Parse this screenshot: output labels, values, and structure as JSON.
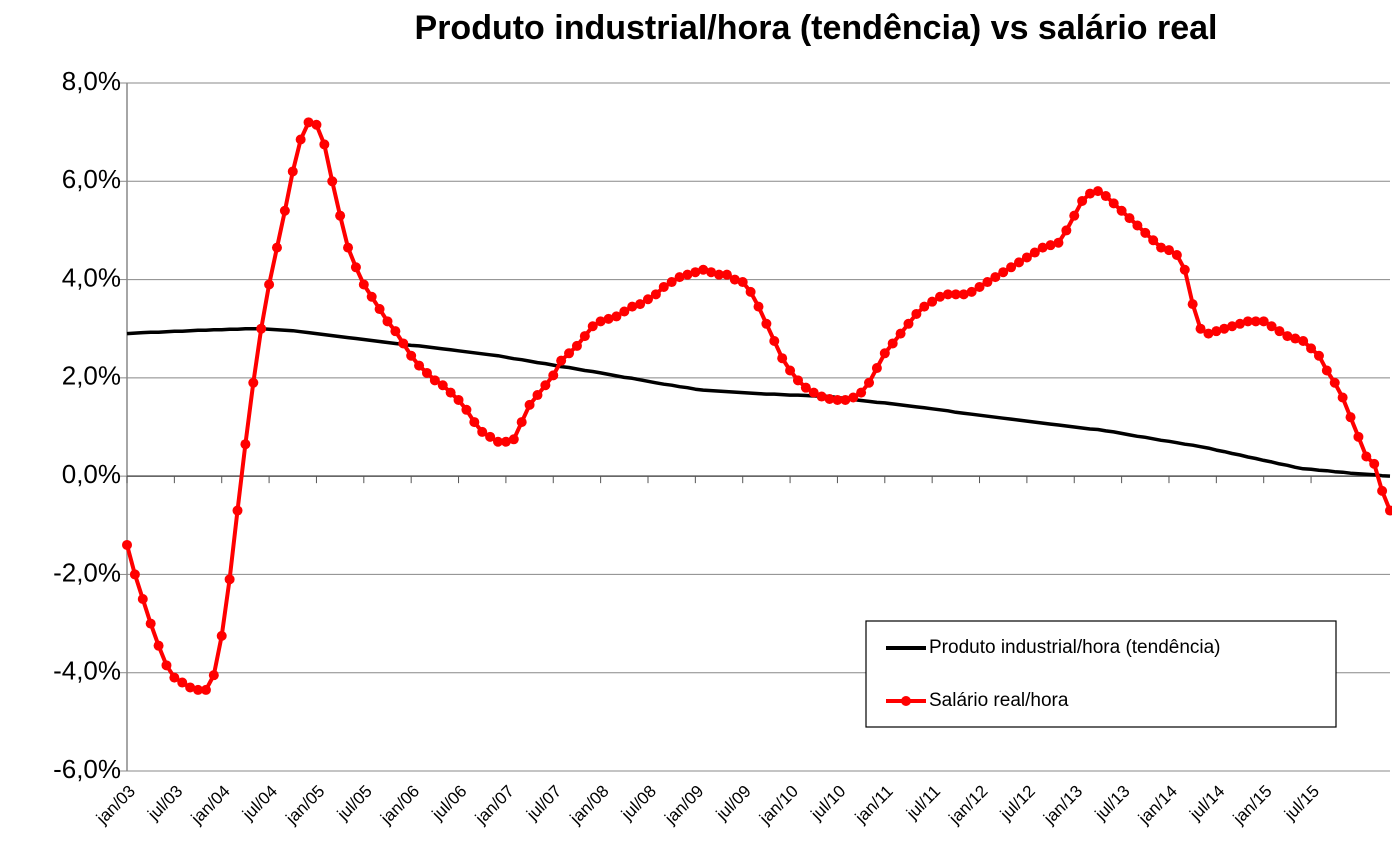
{
  "chart_data": {
    "type": "line",
    "title": "Produto industrial/hora (tendência) vs salário real",
    "categories": [
      "jan/03",
      null,
      null,
      null,
      null,
      null,
      "jul/03",
      null,
      null,
      null,
      null,
      null,
      "jan/04",
      null,
      null,
      null,
      null,
      null,
      "jul/04",
      null,
      null,
      null,
      null,
      null,
      "jan/05",
      null,
      null,
      null,
      null,
      null,
      "jul/05",
      null,
      null,
      null,
      null,
      null,
      "jan/06",
      null,
      null,
      null,
      null,
      null,
      "jul/06",
      null,
      null,
      null,
      null,
      null,
      "jan/07",
      null,
      null,
      null,
      null,
      null,
      "jul/07",
      null,
      null,
      null,
      null,
      null,
      "jan/08",
      null,
      null,
      null,
      null,
      null,
      "jul/08",
      null,
      null,
      null,
      null,
      null,
      "jan/09",
      null,
      null,
      null,
      null,
      null,
      "jul/09",
      null,
      null,
      null,
      null,
      null,
      "jan/10",
      null,
      null,
      null,
      null,
      null,
      "jul/10",
      null,
      null,
      null,
      null,
      null,
      "jan/11",
      null,
      null,
      null,
      null,
      null,
      "jul/11",
      null,
      null,
      null,
      null,
      null,
      "jan/12",
      null,
      null,
      null,
      null,
      null,
      "jul/12",
      null,
      null,
      null,
      null,
      null,
      "jan/13",
      null,
      null,
      null,
      null,
      null,
      "jul/13",
      null,
      null,
      null,
      null,
      null,
      "jan/14",
      null,
      null,
      null,
      null,
      null,
      "jul/14",
      null,
      null,
      null,
      null,
      null,
      "jan/15",
      null,
      null,
      null,
      null,
      null,
      "jul/15",
      null,
      null,
      null,
      null,
      null,
      null,
      null,
      null,
      null,
      null
    ],
    "series": [
      {
        "name": "Produto industrial/hora (tendência)",
        "color": "#000000",
        "marker": false,
        "values": [
          2.9,
          2.91,
          2.92,
          2.93,
          2.93,
          2.94,
          2.95,
          2.95,
          2.96,
          2.97,
          2.97,
          2.98,
          2.98,
          2.99,
          2.99,
          3.0,
          3.0,
          3.0,
          2.99,
          2.98,
          2.97,
          2.96,
          2.94,
          2.92,
          2.9,
          2.88,
          2.86,
          2.84,
          2.82,
          2.8,
          2.78,
          2.76,
          2.74,
          2.72,
          2.7,
          2.68,
          2.66,
          2.65,
          2.63,
          2.61,
          2.59,
          2.57,
          2.55,
          2.53,
          2.51,
          2.49,
          2.47,
          2.45,
          2.42,
          2.39,
          2.37,
          2.34,
          2.31,
          2.29,
          2.26,
          2.23,
          2.21,
          2.18,
          2.15,
          2.13,
          2.1,
          2.07,
          2.04,
          2.01,
          1.99,
          1.96,
          1.93,
          1.9,
          1.87,
          1.85,
          1.82,
          1.8,
          1.77,
          1.75,
          1.74,
          1.73,
          1.72,
          1.71,
          1.7,
          1.69,
          1.68,
          1.67,
          1.67,
          1.66,
          1.65,
          1.65,
          1.64,
          1.63,
          1.63,
          1.62,
          1.6,
          1.58,
          1.56,
          1.54,
          1.52,
          1.5,
          1.49,
          1.47,
          1.45,
          1.43,
          1.41,
          1.39,
          1.37,
          1.35,
          1.33,
          1.3,
          1.28,
          1.26,
          1.24,
          1.22,
          1.2,
          1.18,
          1.16,
          1.14,
          1.12,
          1.1,
          1.08,
          1.06,
          1.04,
          1.02,
          1.0,
          0.98,
          0.96,
          0.95,
          0.92,
          0.9,
          0.87,
          0.84,
          0.81,
          0.79,
          0.76,
          0.73,
          0.71,
          0.68,
          0.65,
          0.63,
          0.6,
          0.57,
          0.53,
          0.5,
          0.46,
          0.43,
          0.39,
          0.36,
          0.32,
          0.29,
          0.25,
          0.22,
          0.18,
          0.15,
          0.14,
          0.12,
          0.11,
          0.09,
          0.08,
          0.06,
          0.05,
          0.04,
          0.03,
          0.01,
          0.0
        ]
      },
      {
        "name": "Salário real/hora",
        "color": "#ff0000",
        "marker": true,
        "values": [
          -1.4,
          -2.0,
          -2.5,
          -3.0,
          -3.45,
          -3.85,
          -4.1,
          -4.2,
          -4.3,
          -4.35,
          -4.35,
          -4.05,
          -3.25,
          -2.1,
          -0.7,
          0.65,
          1.9,
          3.0,
          3.9,
          4.65,
          5.4,
          6.2,
          6.85,
          7.2,
          7.15,
          6.75,
          6.0,
          5.3,
          4.65,
          4.25,
          3.9,
          3.65,
          3.4,
          3.15,
          2.95,
          2.7,
          2.45,
          2.25,
          2.1,
          1.95,
          1.85,
          1.7,
          1.55,
          1.35,
          1.1,
          0.9,
          0.8,
          0.7,
          0.7,
          0.75,
          1.1,
          1.45,
          1.65,
          1.85,
          2.05,
          2.35,
          2.5,
          2.65,
          2.85,
          3.05,
          3.15,
          3.2,
          3.25,
          3.35,
          3.45,
          3.5,
          3.6,
          3.7,
          3.85,
          3.95,
          4.05,
          4.1,
          4.15,
          4.2,
          4.15,
          4.1,
          4.1,
          4.0,
          3.95,
          3.75,
          3.45,
          3.1,
          2.75,
          2.4,
          2.15,
          1.95,
          1.8,
          1.7,
          1.62,
          1.57,
          1.55,
          1.55,
          1.6,
          1.7,
          1.9,
          2.2,
          2.5,
          2.7,
          2.9,
          3.1,
          3.3,
          3.45,
          3.55,
          3.65,
          3.7,
          3.7,
          3.7,
          3.75,
          3.85,
          3.95,
          4.05,
          4.15,
          4.25,
          4.35,
          4.45,
          4.55,
          4.65,
          4.7,
          4.75,
          5.0,
          5.3,
          5.6,
          5.75,
          5.8,
          5.7,
          5.55,
          5.4,
          5.25,
          5.1,
          4.95,
          4.8,
          4.65,
          4.6,
          4.5,
          4.2,
          3.5,
          3.0,
          2.9,
          2.95,
          3.0,
          3.05,
          3.1,
          3.15,
          3.15,
          3.15,
          3.05,
          2.95,
          2.85,
          2.8,
          2.75,
          2.6,
          2.45,
          2.15,
          1.9,
          1.6,
          1.2,
          0.8,
          0.4,
          0.25,
          -0.3,
          -0.7
        ]
      }
    ],
    "ylim": [
      -6,
      8
    ],
    "yticks": [
      {
        "value": -6,
        "label": "-6,0%"
      },
      {
        "value": -4,
        "label": "-4,0%"
      },
      {
        "value": -2,
        "label": "-2,0%"
      },
      {
        "value": 0,
        "label": "0,0%"
      },
      {
        "value": 2,
        "label": "2,0%"
      },
      {
        "value": 4,
        "label": "4,0%"
      },
      {
        "value": 6,
        "label": "6,0%"
      },
      {
        "value": 8,
        "label": "8,0%"
      }
    ],
    "grid": true,
    "legend": "lower right"
  }
}
